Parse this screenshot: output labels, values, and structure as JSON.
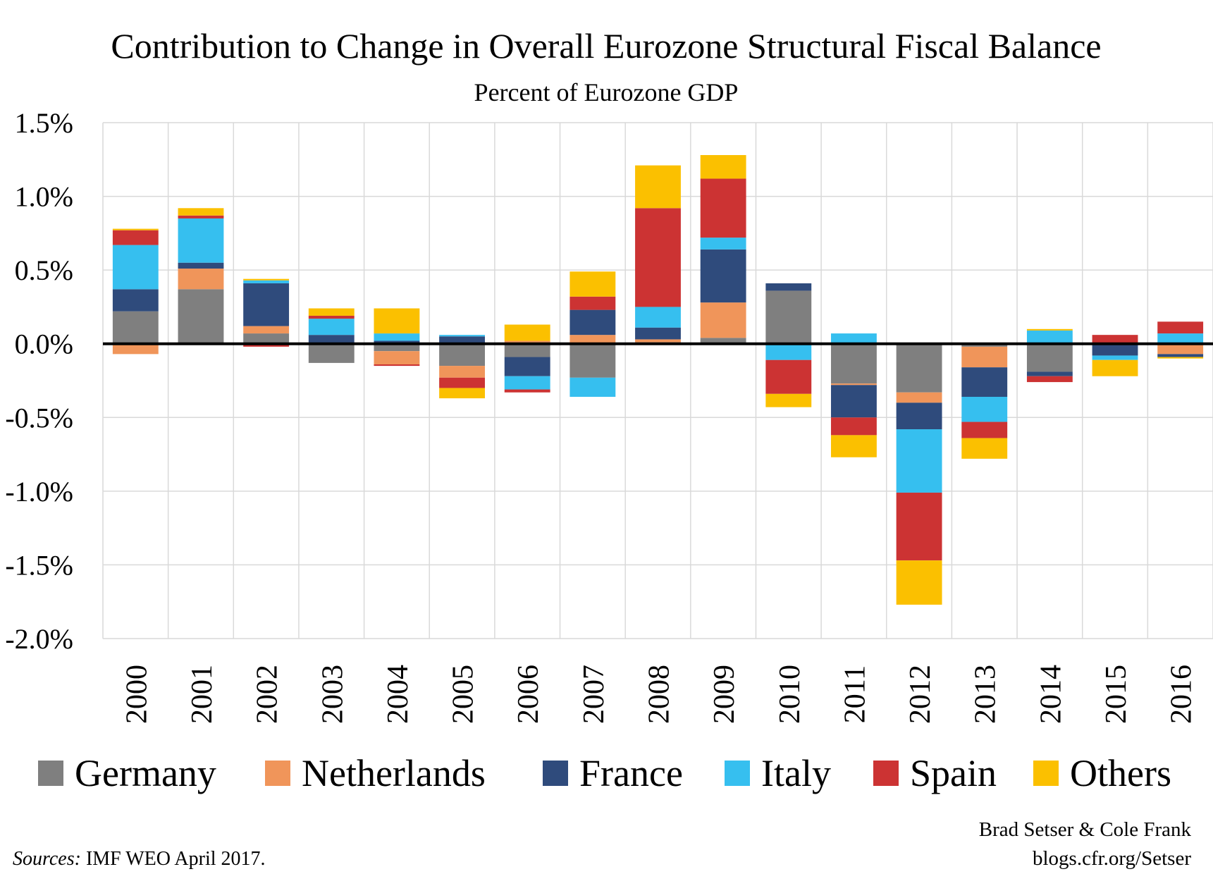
{
  "chart_data": {
    "type": "bar",
    "stacked": true,
    "title": "Contribution to Change in Overall  Eurozone Structural Fiscal Balance",
    "subtitle": "Percent of  Eurozone GDP",
    "categories": [
      "2000",
      "2001",
      "2002",
      "2003",
      "2004",
      "2005",
      "2006",
      "2007",
      "2008",
      "2009",
      "2010",
      "2011",
      "2012",
      "2013",
      "2014",
      "2015",
      "2016"
    ],
    "ylim": [
      -2.0,
      1.5
    ],
    "yticks": [
      1.5,
      1.0,
      0.5,
      0.0,
      -0.5,
      -1.0,
      -1.5,
      -2.0
    ],
    "ytick_labels": [
      "1.5%",
      "1.0%",
      "0.5%",
      "0.0%",
      "-0.5%",
      "-1.0%",
      "-1.5%",
      "-2.0%"
    ],
    "grid": true,
    "legend_position": "bottom",
    "series": [
      {
        "name": "Germany",
        "color": "#7f7f7f",
        "values": [
          0.22,
          0.37,
          0.07,
          -0.13,
          -0.05,
          -0.15,
          -0.09,
          -0.23,
          0.01,
          0.04,
          0.36,
          -0.27,
          -0.33,
          -0.02,
          -0.19,
          0.0,
          0.0
        ]
      },
      {
        "name": "Netherlands",
        "color": "#f0955a",
        "values": [
          -0.07,
          0.14,
          0.05,
          0.0,
          -0.09,
          -0.08,
          0.02,
          0.06,
          0.02,
          0.24,
          0.0,
          -0.01,
          -0.07,
          -0.14,
          0.0,
          0.0,
          -0.07
        ]
      },
      {
        "name": "France",
        "color": "#2f4b7c",
        "values": [
          0.15,
          0.04,
          0.29,
          0.06,
          0.02,
          0.05,
          -0.13,
          0.17,
          0.08,
          0.36,
          0.05,
          -0.22,
          -0.18,
          -0.2,
          -0.03,
          -0.08,
          -0.02
        ]
      },
      {
        "name": "Italy",
        "color": "#36bfef",
        "values": [
          0.3,
          0.3,
          0.02,
          0.11,
          0.05,
          0.01,
          -0.09,
          -0.13,
          0.14,
          0.08,
          -0.11,
          0.07,
          -0.43,
          -0.17,
          0.09,
          -0.03,
          0.07
        ]
      },
      {
        "name": "Spain",
        "color": "#cc3333",
        "values": [
          0.1,
          0.02,
          -0.02,
          0.02,
          -0.01,
          -0.07,
          -0.02,
          0.09,
          0.67,
          0.4,
          -0.23,
          -0.12,
          -0.46,
          -0.11,
          -0.04,
          0.06,
          0.08
        ]
      },
      {
        "name": "Others",
        "color": "#fbc000",
        "values": [
          0.01,
          0.05,
          0.01,
          0.05,
          0.17,
          -0.07,
          0.11,
          0.17,
          0.29,
          0.16,
          -0.09,
          -0.15,
          -0.3,
          -0.14,
          0.01,
          -0.11,
          -0.01
        ]
      }
    ],
    "credit_lines": [
      "Brad Setser & Cole Frank",
      "blogs.cfr.org/Setser"
    ],
    "source_label": "Sources:",
    "source_text": " IMF WEO April 2017."
  }
}
